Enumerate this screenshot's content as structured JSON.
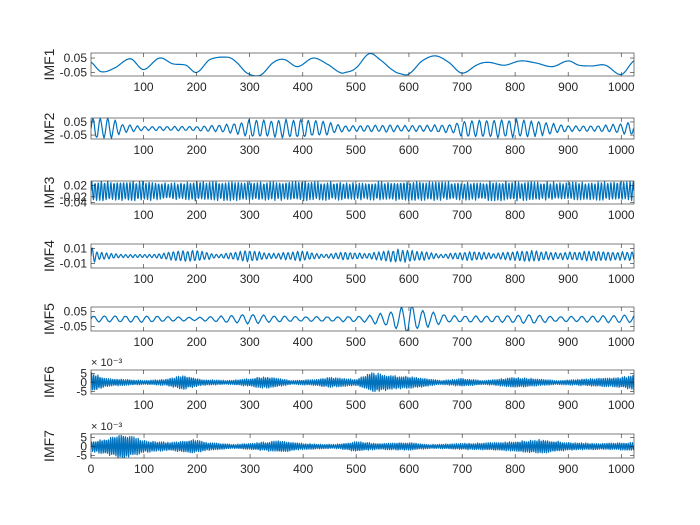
{
  "figure": {
    "background": "#ffffff",
    "line_color": "#0072BD"
  },
  "chart_data": [
    {
      "type": "line",
      "ylabel": "IMF1",
      "xlim": [
        1,
        1024
      ],
      "ylim": [
        -0.075,
        0.085
      ],
      "yticks": [
        -0.05,
        0.05
      ],
      "ytick_labels": [
        "-0.05",
        "0.05"
      ],
      "xticks": [
        100,
        200,
        300,
        400,
        500,
        600,
        700,
        800,
        900,
        1000
      ],
      "xtick_labels": [
        "100",
        "200",
        "300",
        "400",
        "500",
        "600",
        "700",
        "800",
        "900",
        "1000"
      ],
      "exponent": "",
      "signal": {
        "kind": "keypoints",
        "x": [
          1,
          20,
          45,
          75,
          100,
          130,
          155,
          180,
          200,
          225,
          260,
          275,
          295,
          320,
          345,
          365,
          390,
          420,
          450,
          470,
          480,
          500,
          525,
          545,
          570,
          585,
          600,
          625,
          650,
          675,
          700,
          730,
          750,
          780,
          810,
          840,
          870,
          900,
          920,
          945,
          970,
          1000,
          1024
        ],
        "y": [
          0.02,
          -0.045,
          -0.02,
          0.045,
          -0.03,
          0.05,
          0.01,
          0.0,
          -0.05,
          0.04,
          0.055,
          0.02,
          -0.055,
          -0.07,
          0.02,
          0.04,
          -0.01,
          0.05,
          0.0,
          -0.05,
          -0.05,
          -0.02,
          0.08,
          0.04,
          -0.035,
          -0.06,
          -0.06,
          0.03,
          0.065,
          0.02,
          -0.055,
          0.005,
          0.02,
          0.0,
          0.03,
          0.015,
          -0.01,
          0.03,
          0.0,
          -0.005,
          0.0,
          -0.065,
          0.03
        ]
      }
    },
    {
      "type": "line",
      "ylabel": "IMF2",
      "xlim": [
        1,
        1024
      ],
      "ylim": [
        -0.08,
        0.08
      ],
      "yticks": [
        -0.05,
        0.05
      ],
      "ytick_labels": [
        "-0.05",
        "0.05"
      ],
      "xticks": [
        100,
        200,
        300,
        400,
        500,
        600,
        700,
        800,
        900,
        1000
      ],
      "xtick_labels": [
        "100",
        "200",
        "300",
        "400",
        "500",
        "600",
        "700",
        "800",
        "900",
        "1000"
      ],
      "exponent": "",
      "signal": {
        "kind": "oscillation",
        "period": 14,
        "envelope": [
          [
            1,
            0.075
          ],
          [
            40,
            0.07
          ],
          [
            60,
            0.03
          ],
          [
            100,
            0.015
          ],
          [
            200,
            0.015
          ],
          [
            260,
            0.03
          ],
          [
            300,
            0.06
          ],
          [
            400,
            0.065
          ],
          [
            440,
            0.05
          ],
          [
            480,
            0.02
          ],
          [
            560,
            0.025
          ],
          [
            600,
            0.02
          ],
          [
            680,
            0.03
          ],
          [
            700,
            0.06
          ],
          [
            800,
            0.065
          ],
          [
            850,
            0.05
          ],
          [
            900,
            0.02
          ],
          [
            960,
            0.02
          ],
          [
            1000,
            0.035
          ],
          [
            1024,
            0.05
          ]
        ]
      }
    },
    {
      "type": "line",
      "ylabel": "IMF3",
      "xlim": [
        1,
        1024
      ],
      "ylim": [
        -0.045,
        0.035
      ],
      "yticks": [
        -0.04,
        -0.02,
        0.02
      ],
      "ytick_labels": [
        "-0.04",
        "-0.02",
        "0.02"
      ],
      "xticks": [
        100,
        200,
        300,
        400,
        500,
        600,
        700,
        800,
        900,
        1000
      ],
      "xtick_labels": [
        "100",
        "200",
        "300",
        "400",
        "500",
        "600",
        "700",
        "800",
        "900",
        "1000"
      ],
      "exponent": "",
      "signal": {
        "kind": "oscillation",
        "period": 6,
        "envelope": [
          [
            1,
            0.03
          ],
          [
            100,
            0.03
          ],
          [
            150,
            0.026
          ],
          [
            200,
            0.03
          ],
          [
            300,
            0.028
          ],
          [
            400,
            0.03
          ],
          [
            500,
            0.027
          ],
          [
            600,
            0.03
          ],
          [
            700,
            0.028
          ],
          [
            800,
            0.03
          ],
          [
            900,
            0.027
          ],
          [
            1024,
            0.03
          ]
        ]
      }
    },
    {
      "type": "line",
      "ylabel": "IMF4",
      "xlim": [
        1,
        1024
      ],
      "ylim": [
        -0.016,
        0.016
      ],
      "yticks": [
        -0.01,
        0.01
      ],
      "ytick_labels": [
        "-0.01",
        "0.01"
      ],
      "xticks": [
        100,
        200,
        300,
        400,
        500,
        600,
        700,
        800,
        900,
        1000
      ],
      "xtick_labels": [
        "100",
        "200",
        "300",
        "400",
        "500",
        "600",
        "700",
        "800",
        "900",
        "1000"
      ],
      "exponent": "",
      "signal": {
        "kind": "oscillation",
        "period": 9,
        "envelope": [
          [
            1,
            0.014
          ],
          [
            10,
            0.005
          ],
          [
            60,
            0.002
          ],
          [
            120,
            0.002
          ],
          [
            160,
            0.006
          ],
          [
            200,
            0.007
          ],
          [
            240,
            0.002
          ],
          [
            300,
            0.007
          ],
          [
            340,
            0.003
          ],
          [
            400,
            0.006
          ],
          [
            440,
            0.002
          ],
          [
            480,
            0.005
          ],
          [
            520,
            0.003
          ],
          [
            580,
            0.008
          ],
          [
            620,
            0.006
          ],
          [
            660,
            0.002
          ],
          [
            720,
            0.006
          ],
          [
            760,
            0.003
          ],
          [
            820,
            0.007
          ],
          [
            880,
            0.004
          ],
          [
            940,
            0.006
          ],
          [
            1000,
            0.005
          ],
          [
            1024,
            0.006
          ]
        ]
      }
    },
    {
      "type": "line",
      "ylabel": "IMF5",
      "xlim": [
        1,
        1024
      ],
      "ylim": [
        -0.08,
        0.08
      ],
      "yticks": [
        -0.05,
        0.05
      ],
      "ytick_labels": [
        "-0.05",
        "0.05"
      ],
      "xticks": [
        100,
        200,
        300,
        400,
        500,
        600,
        700,
        800,
        900,
        1000
      ],
      "xtick_labels": [
        "100",
        "200",
        "300",
        "400",
        "500",
        "600",
        "700",
        "800",
        "900",
        "1000"
      ],
      "exponent": "",
      "signal": {
        "kind": "oscillation",
        "period": 20,
        "envelope": [
          [
            1,
            0.02
          ],
          [
            100,
            0.02
          ],
          [
            200,
            0.01
          ],
          [
            250,
            0.02
          ],
          [
            300,
            0.03
          ],
          [
            350,
            0.02
          ],
          [
            400,
            0.015
          ],
          [
            460,
            0.015
          ],
          [
            520,
            0.02
          ],
          [
            560,
            0.045
          ],
          [
            600,
            0.09
          ],
          [
            640,
            0.045
          ],
          [
            680,
            0.02
          ],
          [
            760,
            0.02
          ],
          [
            830,
            0.03
          ],
          [
            880,
            0.015
          ],
          [
            950,
            0.02
          ],
          [
            1024,
            0.025
          ]
        ]
      }
    },
    {
      "type": "line",
      "ylabel": "IMF6",
      "xlim": [
        1,
        1024
      ],
      "ylim": [
        -6.5,
        7
      ],
      "yticks": [
        -5,
        0,
        5
      ],
      "ytick_labels": [
        "-5",
        "0",
        "5"
      ],
      "xticks": [
        100,
        200,
        300,
        400,
        500,
        600,
        700,
        800,
        900,
        1000
      ],
      "xtick_labels": [
        "100",
        "200",
        "300",
        "400",
        "500",
        "600",
        "700",
        "800",
        "900",
        "1000"
      ],
      "exponent": "× 10⁻³",
      "signal": {
        "kind": "oscillation",
        "period": 4,
        "envelope": [
          [
            1,
            5
          ],
          [
            30,
            2
          ],
          [
            100,
            1
          ],
          [
            140,
            1.5
          ],
          [
            175,
            3.5
          ],
          [
            210,
            1.5
          ],
          [
            260,
            1
          ],
          [
            300,
            2
          ],
          [
            330,
            3
          ],
          [
            380,
            1
          ],
          [
            420,
            1.5
          ],
          [
            450,
            2.5
          ],
          [
            500,
            1.5
          ],
          [
            530,
            5
          ],
          [
            570,
            3.5
          ],
          [
            620,
            2.5
          ],
          [
            660,
            1
          ],
          [
            700,
            2
          ],
          [
            740,
            1
          ],
          [
            800,
            2.5
          ],
          [
            830,
            2
          ],
          [
            880,
            1
          ],
          [
            950,
            2
          ],
          [
            1000,
            2.5
          ],
          [
            1024,
            4
          ]
        ]
      }
    },
    {
      "type": "line",
      "ylabel": "IMF7",
      "xlim": [
        0,
        1024
      ],
      "ylim": [
        -6.5,
        7
      ],
      "yticks": [
        -5,
        0,
        5
      ],
      "ytick_labels": [
        "-5",
        "0",
        "5"
      ],
      "xticks": [
        0,
        100,
        200,
        300,
        400,
        500,
        600,
        700,
        800,
        900,
        1000
      ],
      "xtick_labels": [
        "0",
        "100",
        "200",
        "300",
        "400",
        "500",
        "600",
        "700",
        "800",
        "900",
        "1000"
      ],
      "exponent": "× 10⁻³",
      "signal": {
        "kind": "oscillation",
        "period": 4,
        "envelope": [
          [
            0,
            2.5
          ],
          [
            30,
            4
          ],
          [
            60,
            6.5
          ],
          [
            100,
            3
          ],
          [
            150,
            2
          ],
          [
            190,
            3.5
          ],
          [
            220,
            2
          ],
          [
            270,
            1
          ],
          [
            320,
            2
          ],
          [
            360,
            3
          ],
          [
            400,
            1.5
          ],
          [
            460,
            1
          ],
          [
            500,
            2.5
          ],
          [
            540,
            1.5
          ],
          [
            600,
            2
          ],
          [
            640,
            1
          ],
          [
            700,
            1.5
          ],
          [
            760,
            2
          ],
          [
            800,
            2.5
          ],
          [
            850,
            3.5
          ],
          [
            900,
            2
          ],
          [
            960,
            1.5
          ],
          [
            1024,
            2
          ]
        ]
      }
    }
  ]
}
